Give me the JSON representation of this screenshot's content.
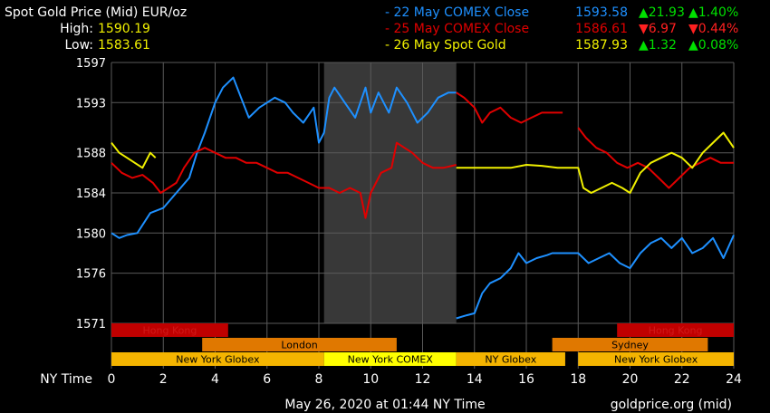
{
  "header": {
    "title": "Spot Gold Price (Mid) EUR/oz",
    "high_label": "High:",
    "high_value": "1590.19",
    "low_label": "Low:",
    "low_value": "1583.61"
  },
  "legend": [
    {
      "label": "- 22 May COMEX Close",
      "price": "1593.58",
      "change": "▲21.93",
      "pct": "▲1.40%",
      "color": "#1e90ff",
      "change_color": "#00e000"
    },
    {
      "label": "- 25 May COMEX Close",
      "price": "1586.61",
      "change": "▼6.97",
      "pct": "▼0.44%",
      "color": "#e00000",
      "change_color": "#ff2020"
    },
    {
      "label": "- 26 May Spot Gold",
      "price": "1587.93",
      "change": "▲1.32",
      "pct": "▲0.08%",
      "color": "#f0f000",
      "change_color": "#00e000"
    }
  ],
  "footer": {
    "timestamp": "May 26, 2020 at 01:44 NY Time",
    "source": "goldprice.org (mid)"
  },
  "sessions": [
    {
      "name": "Hong Kong",
      "start": 0,
      "end": 4.5,
      "row": 0,
      "color": "#c00000",
      "text_color": "#d01818"
    },
    {
      "name": "Hong Kong",
      "start": 19.5,
      "end": 24,
      "row": 0,
      "color": "#c00000",
      "text_color": "#d01818"
    },
    {
      "name": "London",
      "start": 3.5,
      "end": 11,
      "row": 1,
      "color": "#e07800",
      "text_color": "#000000"
    },
    {
      "name": "Sydney",
      "start": 17,
      "end": 23,
      "row": 1,
      "color": "#e07800",
      "text_color": "#000000"
    },
    {
      "name": "New York Globex",
      "start": 0,
      "end": 8.2,
      "row": 2,
      "color": "#f4b400",
      "text_color": "#000000"
    },
    {
      "name": "New York COMEX",
      "start": 8.2,
      "end": 13.3,
      "row": 2,
      "color": "#ffff00",
      "text_color": "#000000"
    },
    {
      "name": "NY Globex",
      "start": 13.3,
      "end": 17.5,
      "row": 2,
      "color": "#f4b400",
      "text_color": "#000000"
    },
    {
      "name": "New York Globex",
      "start": 18,
      "end": 24,
      "row": 2,
      "color": "#f4b400",
      "text_color": "#000000"
    }
  ],
  "chart_data": {
    "type": "line",
    "xlabel": "NY Time",
    "xlim": [
      0,
      24
    ],
    "ylim": [
      1571,
      1597
    ],
    "x_ticks": [
      0,
      2,
      4,
      6,
      8,
      10,
      12,
      14,
      16,
      18,
      20,
      22,
      24
    ],
    "y_ticks": [
      1571,
      1576,
      1580,
      1584,
      1588,
      1593,
      1597
    ],
    "grid": true,
    "shaded_region": [
      8.2,
      13.3
    ],
    "series": [
      {
        "name": "22 May COMEX Close",
        "color": "#1e90ff",
        "x": [
          0,
          0.3,
          0.6,
          1,
          1.5,
          2,
          2.5,
          3,
          3.3,
          3.6,
          4,
          4.3,
          4.7,
          5,
          5.3,
          5.7,
          6,
          6.3,
          6.7,
          7,
          7.4,
          7.8,
          8,
          8.2,
          8.4,
          8.6,
          9,
          9.4,
          9.8,
          10,
          10.3,
          10.7,
          11,
          11.4,
          11.8,
          12.2,
          12.6,
          13,
          13.3
        ],
        "y": [
          1580,
          1579.5,
          1579.8,
          1580,
          1582,
          1582.5,
          1584,
          1585.5,
          1588,
          1590,
          1593,
          1594.5,
          1595.5,
          1593.5,
          1591.5,
          1592.5,
          1593,
          1593.5,
          1593,
          1592,
          1591,
          1592.5,
          1589,
          1590,
          1593.5,
          1594.5,
          1593,
          1591.5,
          1594.5,
          1592,
          1594,
          1592,
          1594.5,
          1593,
          1591,
          1592,
          1593.5,
          1594,
          1594
        ]
      },
      {
        "name": "22 May COMEX Close (overnight)",
        "color": "#1e90ff",
        "x": [
          13.3,
          13.7,
          14,
          14.3,
          14.6,
          15,
          15.4,
          15.7,
          16,
          16.4,
          16.8,
          17,
          17.3,
          17.6,
          18,
          18.4,
          18.8,
          19.2,
          19.6,
          20,
          20.4,
          20.8,
          21.2,
          21.6,
          22,
          22.4,
          22.8,
          23.2,
          23.6,
          24
        ],
        "y": [
          1571.5,
          1571.8,
          1572,
          1574,
          1575,
          1575.5,
          1576.5,
          1578,
          1577,
          1577.5,
          1577.8,
          1578,
          1578,
          1578,
          1578,
          1577,
          1577.5,
          1578,
          1577,
          1576.5,
          1578,
          1579,
          1579.5,
          1578.5,
          1579.5,
          1578,
          1578.5,
          1579.5,
          1577.5,
          1579.8
        ]
      },
      {
        "name": "25 May COMEX Close",
        "color": "#e00000",
        "x": [
          0,
          0.4,
          0.8,
          1.2,
          1.6,
          1.9,
          2.2,
          2.5,
          2.8,
          3.2,
          3.6,
          4,
          4.4,
          4.8,
          5.2,
          5.6,
          6,
          6.4,
          6.8,
          7.2,
          7.6,
          8,
          8.4,
          8.8,
          9.2,
          9.6,
          9.8,
          10,
          10.4,
          10.8,
          11,
          11.3,
          11.6,
          12,
          12.4,
          12.8,
          13.3
        ],
        "y": [
          1587,
          1586,
          1585.5,
          1585.8,
          1585,
          1584,
          1584.5,
          1585,
          1586.5,
          1588,
          1588.5,
          1588,
          1587.5,
          1587.5,
          1587,
          1587,
          1586.5,
          1586,
          1586,
          1585.5,
          1585,
          1584.5,
          1584.5,
          1584,
          1584.5,
          1584,
          1581.5,
          1584,
          1586,
          1586.5,
          1589,
          1588.5,
          1588,
          1587,
          1586.5,
          1586.5,
          1586.8
        ]
      },
      {
        "name": "25 May COMEX Close (overnight)",
        "color": "#e00000",
        "x": [
          13.3,
          13.6,
          14,
          14.3,
          14.6,
          15,
          15.4,
          15.8,
          16.2,
          16.6,
          17,
          17.4
        ],
        "y": [
          1594,
          1593.5,
          1592.5,
          1591,
          1592,
          1592.5,
          1591.5,
          1591,
          1591.5,
          1592,
          1592,
          1592
        ]
      },
      {
        "name": "25 May COMEX Close (late)",
        "color": "#e00000",
        "x": [
          18,
          18.3,
          18.7,
          19.1,
          19.5,
          19.9,
          20.3,
          20.7,
          21.1,
          21.5,
          21.9,
          22.3,
          22.7,
          23.1,
          23.5,
          24
        ],
        "y": [
          1590.5,
          1589.5,
          1588.5,
          1588,
          1587,
          1586.5,
          1587,
          1586.5,
          1585.5,
          1584.5,
          1585.5,
          1586.5,
          1587,
          1587.5,
          1587,
          1587
        ]
      },
      {
        "name": "26 May Spot Gold",
        "color": "#f0f000",
        "x": [
          0,
          0.3,
          0.6,
          0.9,
          1.2,
          1.5,
          1.7
        ],
        "y": [
          1589,
          1588,
          1587.5,
          1587,
          1586.5,
          1588,
          1587.5
        ]
      },
      {
        "name": "26 May Spot Gold (evening)",
        "color": "#f0f000",
        "x": [
          13.3,
          14,
          14.7,
          15.4,
          16,
          16.6,
          17.2,
          17.6,
          18,
          18.2,
          18.5,
          18.9,
          19.3,
          19.7,
          20,
          20.4,
          20.8,
          21.2,
          21.6,
          22,
          22.4,
          22.8,
          23.2,
          23.6,
          24
        ],
        "y": [
          1586.5,
          1586.5,
          1586.5,
          1586.5,
          1586.8,
          1586.7,
          1586.5,
          1586.5,
          1586.5,
          1584.5,
          1584,
          1584.5,
          1585,
          1584.5,
          1584,
          1586,
          1587,
          1587.5,
          1588,
          1587.5,
          1586.5,
          1588,
          1589,
          1590,
          1588.5
        ]
      }
    ]
  }
}
